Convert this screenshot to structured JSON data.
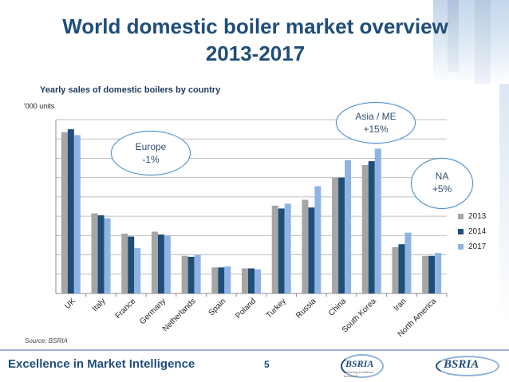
{
  "slide": {
    "title_line1": "World domestic boiler market overview",
    "title_line2": "2013-2017",
    "page_number": "5",
    "footer_text": "Excellence in Market Intelligence",
    "source": "Source: BSRIA",
    "logo_text": "BSRIA",
    "logo_tagline": "delivering excellence worldwide"
  },
  "callouts": {
    "europe": {
      "label": "Europe",
      "value": "-1%"
    },
    "asia": {
      "label": "Asia / ME",
      "value": "+15%"
    },
    "na": {
      "label": "NA",
      "value": "+5%"
    }
  },
  "colors": {
    "s2013": "#a6a6a6",
    "s2014": "#1f4e79",
    "s2017": "#8fb4e3",
    "grid": "#bfbfbf"
  },
  "chart_data": {
    "type": "bar",
    "title": "Yearly sales of domestic boilers by country",
    "ylabel": "'000 units",
    "xlabel": "",
    "ylim": [
      0,
      900
    ],
    "grid": true,
    "legend_position": "right",
    "categories": [
      "UK",
      "Italy",
      "France",
      "Germany",
      "Netherlands",
      "Spain",
      "Poland",
      "Turkey",
      "Russia",
      "China",
      "South Korea",
      "Iran",
      "North America"
    ],
    "series": [
      {
        "name": "2013",
        "values": [
          835,
          415,
          310,
          320,
          195,
          135,
          130,
          455,
          485,
          600,
          665,
          240,
          195
        ]
      },
      {
        "name": "2014",
        "values": [
          850,
          405,
          295,
          305,
          190,
          135,
          130,
          440,
          445,
          600,
          685,
          255,
          195
        ]
      },
      {
        "name": "2017",
        "values": [
          820,
          390,
          235,
          300,
          200,
          140,
          125,
          465,
          555,
          690,
          750,
          315,
          210
        ]
      }
    ]
  }
}
